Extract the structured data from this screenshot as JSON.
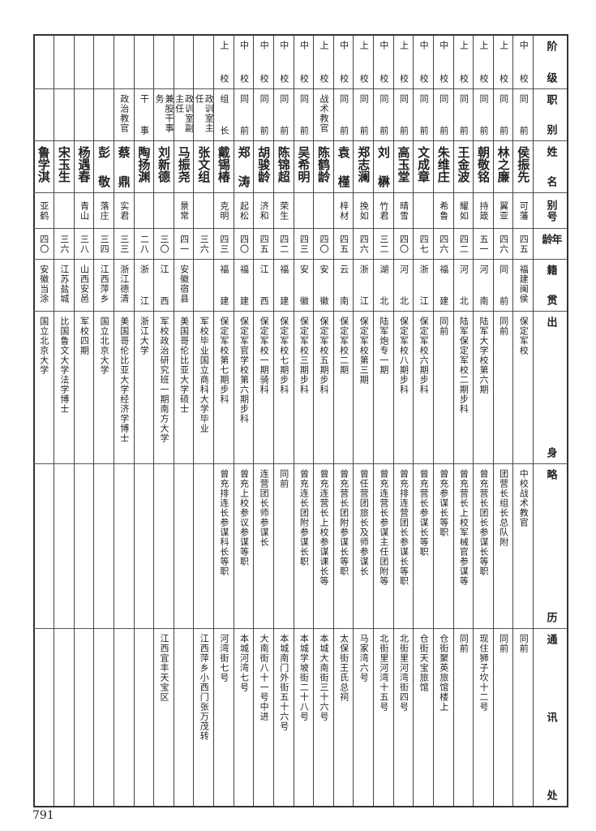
{
  "header": [
    "阶级",
    "职别",
    "姓名",
    "别号",
    "年龄",
    "籍贯",
    "出身",
    "略历",
    "通讯处"
  ],
  "fields": [
    "rank",
    "post",
    "name",
    "alias",
    "age",
    "origin",
    "education",
    "career",
    "address"
  ],
  "rows": [
    {
      "rank": "中校",
      "post": "同前",
      "name": "侯振先",
      "alias": "可藩",
      "age": "四五",
      "origin": "福建闽侯",
      "education": "保定军校",
      "career": "中校战术教官",
      "address": "同前"
    },
    {
      "rank": "上校",
      "post": "同前",
      "name": "林之廉",
      "alias": "翼亚",
      "age": "四六",
      "origin": "同前",
      "education": "同前",
      "career": "团营长组长总队附",
      "address": "同前"
    },
    {
      "rank": "上校",
      "post": "同前",
      "name": "朝敬铭",
      "alias": "持箴",
      "age": "五一",
      "origin": "河南",
      "education": "陆军大学校第六期",
      "career": "曾充营长团长参谋长等职",
      "address": "现住狮子坎十二号"
    },
    {
      "rank": "上校",
      "post": "同前",
      "name": "王金波",
      "alias": "耀如",
      "age": "四二",
      "origin": "河北",
      "education": "陆军保定军校二期步科",
      "career": "曾充营长上校军械官参谋等",
      "address": "同前"
    },
    {
      "rank": "中校",
      "post": "同前",
      "name": "朱维庄",
      "alias": "希鲁",
      "age": "四六",
      "origin": "福建",
      "education": "同前",
      "career": "曾充参谋长等职",
      "address": "仓街聚英旅馆楼上"
    },
    {
      "rank": "中校",
      "post": "同前",
      "name": "文成章",
      "alias": "",
      "age": "四七",
      "origin": "浙江",
      "education": "保定军校六期步科",
      "career": "曾充营长参谋长等职",
      "address": "仓街天宝旅馆"
    },
    {
      "rank": "上校",
      "post": "同前",
      "name": "高玉堂",
      "alias": "晴雪",
      "age": "四〇",
      "origin": "河北",
      "education": "保定军校八期步科",
      "career": "曾充排连营团长参谋长等职",
      "address": "北街里河湾街四号"
    },
    {
      "rank": "中校",
      "post": "同前",
      "name": "刘楙",
      "alias": "竹君",
      "age": "三二",
      "origin": "湖北",
      "education": "陆军炮专一期",
      "career": "曾充连营长参谋主任团附等",
      "address": "北街里河湾十五号"
    },
    {
      "rank": "上校",
      "post": "同前",
      "name": "郑志澜",
      "alias": "挽如",
      "age": "四六",
      "origin": "浙江",
      "education": "保定军校第三期",
      "career": "曾任营团旅长及师参谋长",
      "address": "马家湾六号"
    },
    {
      "rank": "中校",
      "post": "同前",
      "name": "袁槿",
      "alias": "梓材",
      "age": "四五",
      "origin": "云南",
      "education": "保定军校二期",
      "career": "曾充营长团附参谋长等职",
      "address": "太保街王氏总祠"
    },
    {
      "rank": "上校",
      "post": "战术教官",
      "name": "陈鹤龄",
      "alias": "",
      "age": "四〇",
      "origin": "安徽",
      "education": "保定军校五期步科",
      "career": "曾充连营长上校参谋课长等",
      "address": "本城大南街三十六号"
    },
    {
      "rank": "中校",
      "post": "同前",
      "name": "吴希明",
      "alias": "",
      "age": "四三",
      "origin": "安徽",
      "education": "保定军校三期步科",
      "career": "曾充连长团附参谋长职",
      "address": "本城学坡街二十八号"
    },
    {
      "rank": "中校",
      "post": "同前",
      "name": "陈锦超",
      "alias": "荣生",
      "age": "四二",
      "origin": "福建",
      "education": "保定军校七期步科",
      "career": "同前",
      "address": "本城南门外街五十六号"
    },
    {
      "rank": "中校",
      "post": "同前",
      "name": "胡骏龄",
      "alias": "济和",
      "age": "四五",
      "origin": "江西",
      "education": "保定军校一期骑科",
      "career": "连营团长师参谋长",
      "address": "大南街八十一号中进"
    },
    {
      "rank": "中校",
      "post": "同前",
      "name": "郑涛",
      "alias": "起松",
      "age": "四〇",
      "origin": "福建",
      "education": "保定军官学校第六期步科",
      "career": "曾充上校参议参谋等职",
      "address": "本城河湾七号"
    },
    {
      "rank": "上校",
      "post": "组长",
      "name": "戴锡椿",
      "alias": "克明",
      "age": "四三",
      "origin": "福建",
      "education": "保定军校第七期步科",
      "career": "曾充排连长参谋科长等职",
      "address": "河湾街七号"
    },
    {
      "rank": "",
      "post": "政训室主任",
      "name": "张文组",
      "alias": "",
      "age": "三六",
      "origin": "",
      "education": "军校毕业国立商科大学毕业",
      "career": "",
      "address": "江西萍乡小西门张万茂转"
    },
    {
      "rank": "",
      "post": "政训室副主任",
      "name": "马振尧",
      "alias": "景常",
      "age": "四一",
      "origin": "安徽宿县",
      "education": "美国哥伦比亚大学硕士",
      "career": "",
      "address": ""
    },
    {
      "rank": "",
      "post": "兼股干事务",
      "name": "刘新德",
      "alias": "",
      "age": "三〇",
      "origin": "江西",
      "education": "军校政治研究班一期南方大学",
      "career": "",
      "address": "江西宜丰天宝区"
    },
    {
      "rank": "",
      "post": "干事",
      "name": "陶扬渊",
      "alias": "",
      "age": "二八",
      "origin": "浙江",
      "education": "浙江大学",
      "career": "",
      "address": ""
    },
    {
      "rank": "",
      "post": "政治教官",
      "name": "蔡鼎",
      "alias": "实君",
      "age": "三三",
      "origin": "浙江德清",
      "education": "美国哥伦比亚大学经济学博士",
      "career": "",
      "address": ""
    },
    {
      "rank": "",
      "post": "",
      "name": "彭敬",
      "alias": "落庄",
      "age": "三四",
      "origin": "江西萍乡",
      "education": "国立北京大学",
      "career": "",
      "address": ""
    },
    {
      "rank": "",
      "post": "",
      "name": "杨遇春",
      "alias": "青山",
      "age": "三八",
      "origin": "山西安邑",
      "education": "军校四期",
      "career": "",
      "address": ""
    },
    {
      "rank": "",
      "post": "",
      "name": "宋玉生",
      "alias": "",
      "age": "三六",
      "origin": "江苏盐城",
      "education": "比国鲁文大学法学博士",
      "career": "",
      "address": ""
    },
    {
      "rank": "",
      "post": "",
      "name": "鲁学淇",
      "alias": "亚鹤",
      "age": "四〇",
      "origin": "安徽当涂",
      "education": "国立北京大学",
      "career": "",
      "address": ""
    }
  ],
  "page_number": "791"
}
